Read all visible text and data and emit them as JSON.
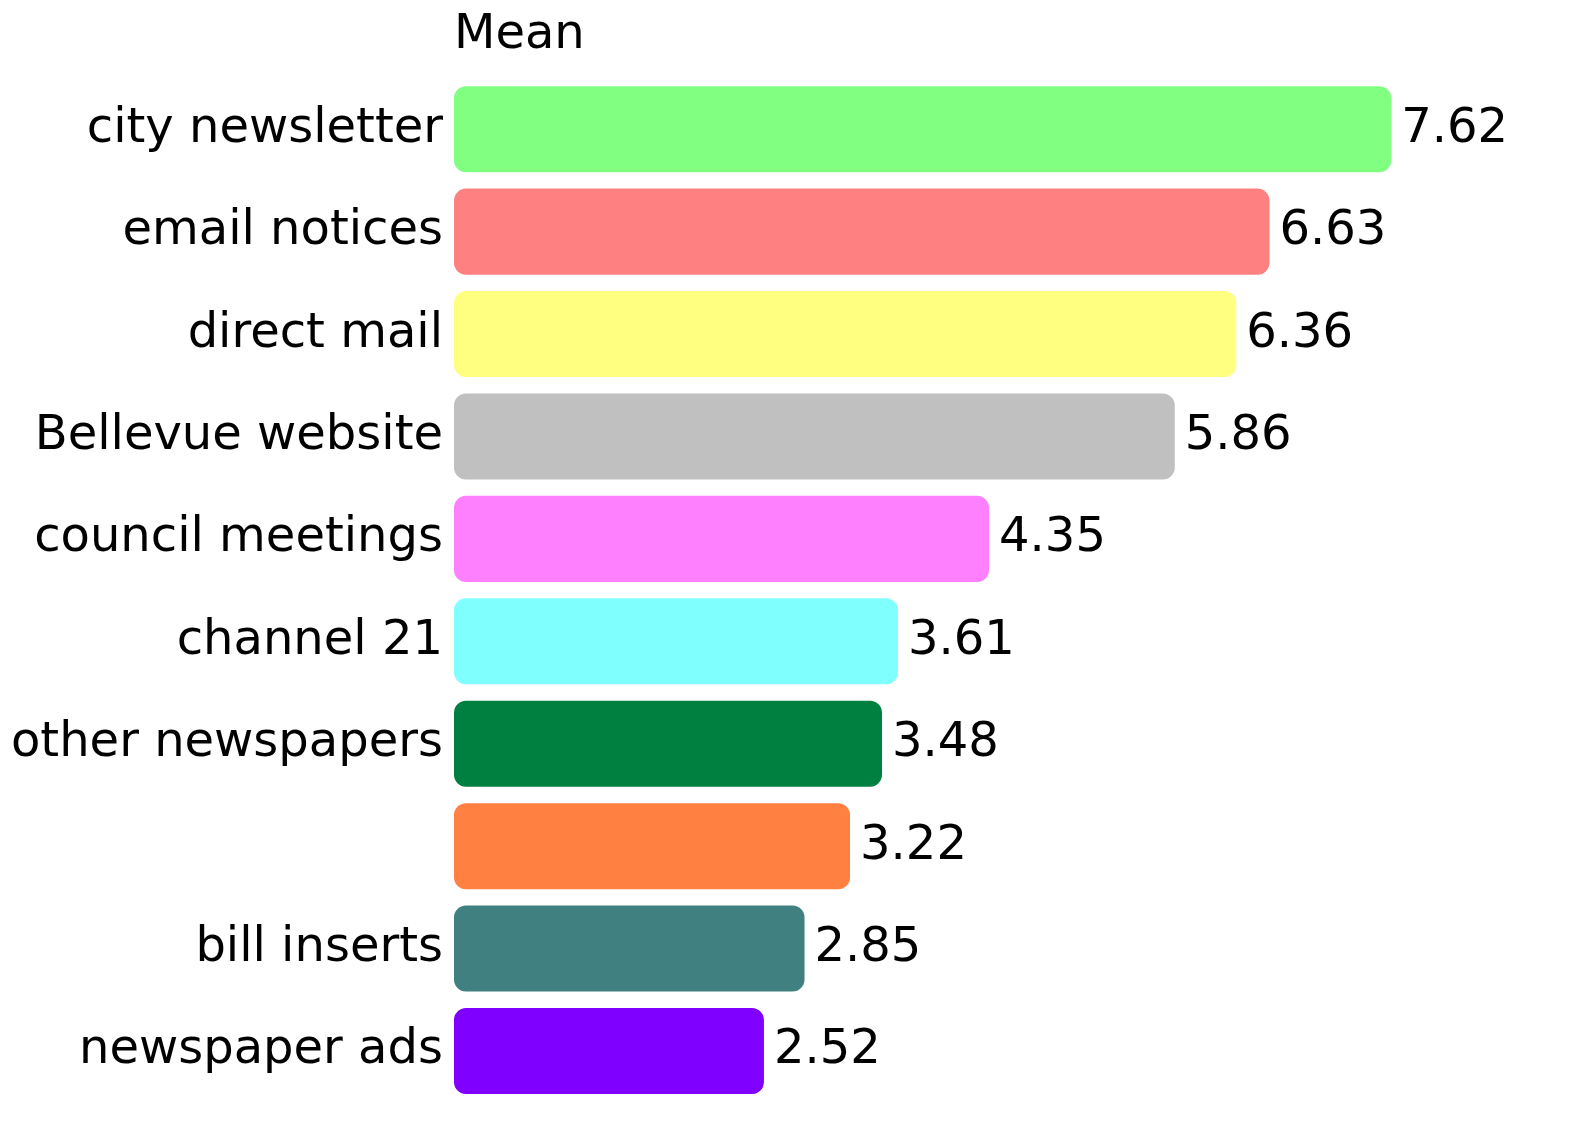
{
  "chart_data": {
    "type": "bar",
    "orientation": "horizontal",
    "title": "Mean",
    "categories": [
      "city newsletter",
      "email notices",
      "direct mail",
      "Bellevue website",
      "council meetings",
      "channel 21",
      "other newspapers",
      null,
      "bill inserts",
      "newspaper ads"
    ],
    "values": [
      7.62,
      6.63,
      6.36,
      5.86,
      4.35,
      3.61,
      3.48,
      3.22,
      2.85,
      2.52
    ],
    "colors": [
      "#80ff80",
      "#ff8080",
      "#ffff80",
      "#c0c0c0",
      "#ff80ff",
      "#80ffff",
      "#008040",
      "#ff8040",
      "#408080",
      "#8000ff"
    ],
    "data_labels": true,
    "grid": false,
    "legend": false
  }
}
